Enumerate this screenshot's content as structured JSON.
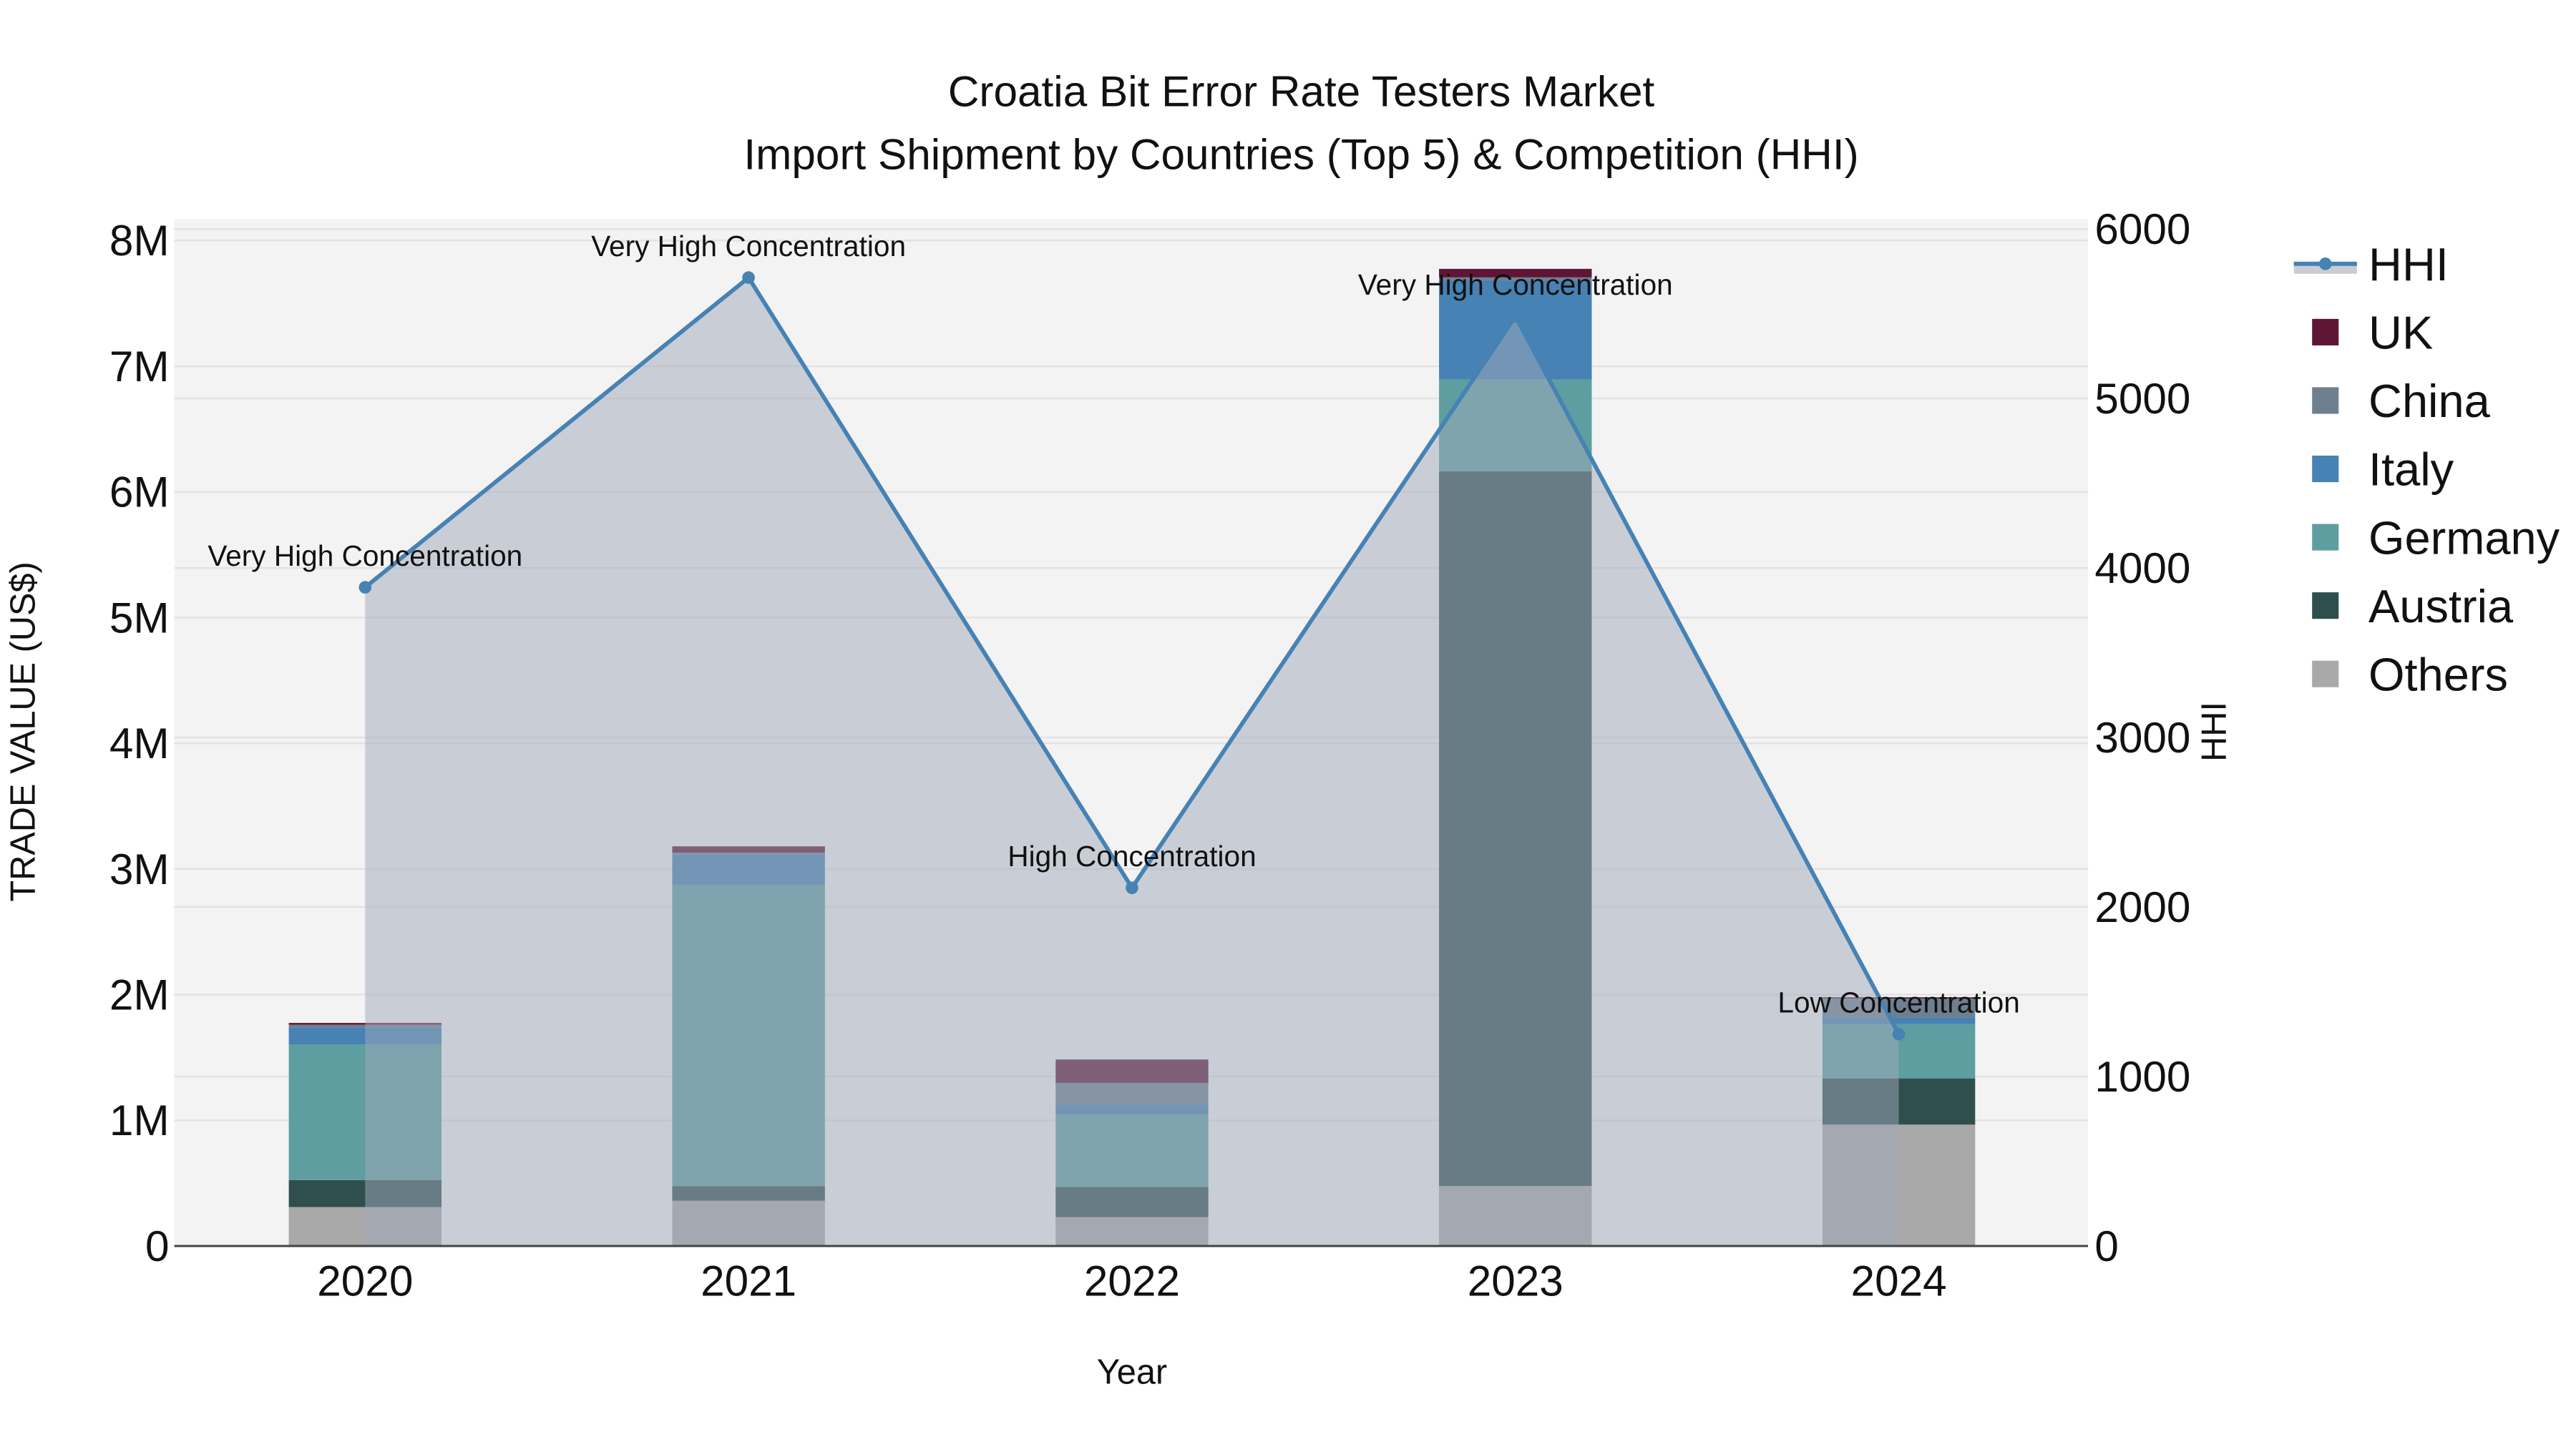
{
  "title": {
    "line1": "Croatia Bit Error Rate Testers Market",
    "line2": "Import Shipment by Countries (Top 5) & Competition (HHI)"
  },
  "axes": {
    "x_label": "Year",
    "y_label": "TRADE VALUE (US$)",
    "y2_label": "HHI",
    "y_ticks": [
      "0",
      "1M",
      "2M",
      "3M",
      "4M",
      "5M",
      "6M",
      "7M",
      "8M"
    ],
    "y2_ticks": [
      "0",
      "1000",
      "2000",
      "3000",
      "4000",
      "5000",
      "6000"
    ],
    "x_ticks": [
      "2020",
      "2021",
      "2022",
      "2023",
      "2024"
    ]
  },
  "legend": [
    {
      "name": "HHI",
      "color": "#4682b4",
      "type": "line"
    },
    {
      "name": "UK",
      "color": "#5f1536",
      "type": "bar"
    },
    {
      "name": "China",
      "color": "#6e7f8f",
      "type": "bar"
    },
    {
      "name": "Italy",
      "color": "#4682b4",
      "type": "bar"
    },
    {
      "name": "Germany",
      "color": "#5f9ea0",
      "type": "bar"
    },
    {
      "name": "Austria",
      "color": "#2f4f4f",
      "type": "bar"
    },
    {
      "name": "Others",
      "color": "#a9a9a9",
      "type": "bar"
    }
  ],
  "chart_data": {
    "type": "bar",
    "stacked": true,
    "title": "Croatia Bit Error Rate Testers Market — Import Shipment by Countries (Top 5) & Competition (HHI)",
    "xlabel": "Year",
    "ylabel": "TRADE VALUE (US$)",
    "y2label": "HHI",
    "ylim": [
      0,
      8000000
    ],
    "y2lim": [
      0,
      6000
    ],
    "categories": [
      "2020",
      "2021",
      "2022",
      "2023",
      "2024"
    ],
    "series": [
      {
        "name": "Others",
        "color": "#a9a9a9",
        "values": [
          310000,
          360000,
          230000,
          477000,
          966000
        ]
      },
      {
        "name": "Austria",
        "color": "#2f4f4f",
        "values": [
          215000,
          117000,
          240000,
          5687000,
          368000
        ]
      },
      {
        "name": "Germany",
        "color": "#5f9ea0",
        "values": [
          1080000,
          2400000,
          577000,
          730000,
          431000
        ]
      },
      {
        "name": "Italy",
        "color": "#4682b4",
        "values": [
          133000,
          240000,
          84000,
          790000,
          54000
        ]
      },
      {
        "name": "China",
        "color": "#6e7f8f",
        "values": [
          23000,
          13000,
          167000,
          23000,
          150000
        ]
      },
      {
        "name": "UK",
        "color": "#5f1536",
        "values": [
          14000,
          50000,
          186000,
          68000,
          10000
        ]
      }
    ],
    "hhi": {
      "name": "HHI",
      "axis": "y2",
      "type": "line+area",
      "color": "#4682b4",
      "values": [
        3886,
        5713,
        2113,
        5484,
        1250
      ],
      "annotations": [
        "Very High Concentration",
        "Very High Concentration",
        "High Concentration",
        "Very High Concentration",
        "Low Concentration"
      ]
    },
    "grid": true,
    "legend_position": "right"
  }
}
